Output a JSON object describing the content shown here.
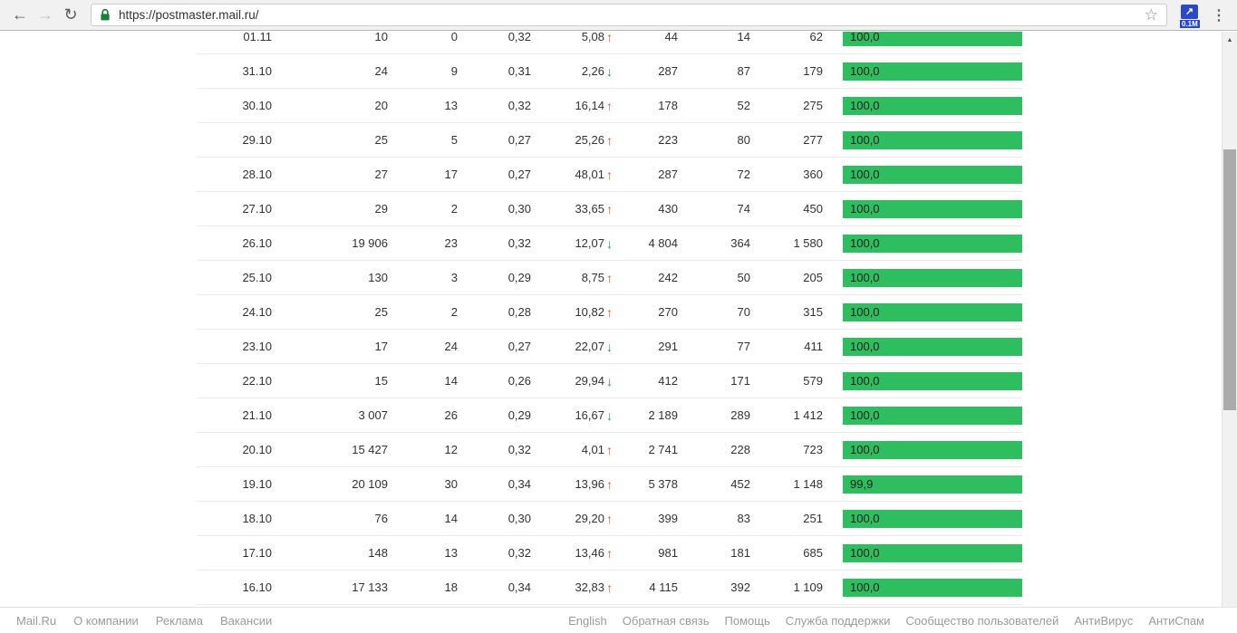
{
  "browser": {
    "url": "https://postmaster.mail.ru/",
    "extension_badge": "0.1M"
  },
  "icons": {
    "back": "←",
    "forward": "→",
    "reload": "↻",
    "star": "☆",
    "menu": "⋮",
    "ext_arrow": "↗",
    "up_arrow": "↑",
    "down_arrow": "↓",
    "scroll_up": "▲",
    "scroll_down": "▼"
  },
  "colors": {
    "bar_green": "#2ebd5f",
    "arrow_up": "#e8502a",
    "arrow_down": "#21a038",
    "lock_green": "#188038"
  },
  "table": {
    "rows": [
      {
        "date": "01.11",
        "v1": "10",
        "v2": "0",
        "v3": "0,32",
        "delta": "5,08",
        "dir": "up",
        "v4": "44",
        "v5": "14",
        "v6": "62",
        "bar": "100,0",
        "pct": 100
      },
      {
        "date": "31.10",
        "v1": "24",
        "v2": "9",
        "v3": "0,31",
        "delta": "2,26",
        "dir": "down",
        "v4": "287",
        "v5": "87",
        "v6": "179",
        "bar": "100,0",
        "pct": 100
      },
      {
        "date": "30.10",
        "v1": "20",
        "v2": "13",
        "v3": "0,32",
        "delta": "16,14",
        "dir": "up",
        "v4": "178",
        "v5": "52",
        "v6": "275",
        "bar": "100,0",
        "pct": 100
      },
      {
        "date": "29.10",
        "v1": "25",
        "v2": "5",
        "v3": "0,27",
        "delta": "25,26",
        "dir": "up",
        "v4": "223",
        "v5": "80",
        "v6": "277",
        "bar": "100,0",
        "pct": 100
      },
      {
        "date": "28.10",
        "v1": "27",
        "v2": "17",
        "v3": "0,27",
        "delta": "48,01",
        "dir": "up",
        "v4": "287",
        "v5": "72",
        "v6": "360",
        "bar": "100,0",
        "pct": 100
      },
      {
        "date": "27.10",
        "v1": "29",
        "v2": "2",
        "v3": "0,30",
        "delta": "33,65",
        "dir": "up",
        "v4": "430",
        "v5": "74",
        "v6": "450",
        "bar": "100,0",
        "pct": 100
      },
      {
        "date": "26.10",
        "v1": "19 906",
        "v2": "23",
        "v3": "0,32",
        "delta": "12,07",
        "dir": "down",
        "v4": "4 804",
        "v5": "364",
        "v6": "1 580",
        "bar": "100,0",
        "pct": 100
      },
      {
        "date": "25.10",
        "v1": "130",
        "v2": "3",
        "v3": "0,29",
        "delta": "8,75",
        "dir": "up",
        "v4": "242",
        "v5": "50",
        "v6": "205",
        "bar": "100,0",
        "pct": 100
      },
      {
        "date": "24.10",
        "v1": "25",
        "v2": "2",
        "v3": "0,28",
        "delta": "10,82",
        "dir": "up",
        "v4": "270",
        "v5": "70",
        "v6": "315",
        "bar": "100,0",
        "pct": 100
      },
      {
        "date": "23.10",
        "v1": "17",
        "v2": "24",
        "v3": "0,27",
        "delta": "22,07",
        "dir": "down",
        "v4": "291",
        "v5": "77",
        "v6": "411",
        "bar": "100,0",
        "pct": 100
      },
      {
        "date": "22.10",
        "v1": "15",
        "v2": "14",
        "v3": "0,26",
        "delta": "29,94",
        "dir": "down",
        "v4": "412",
        "v5": "171",
        "v6": "579",
        "bar": "100,0",
        "pct": 100
      },
      {
        "date": "21.10",
        "v1": "3 007",
        "v2": "26",
        "v3": "0,29",
        "delta": "16,67",
        "dir": "down",
        "v4": "2 189",
        "v5": "289",
        "v6": "1 412",
        "bar": "100,0",
        "pct": 100
      },
      {
        "date": "20.10",
        "v1": "15 427",
        "v2": "12",
        "v3": "0,32",
        "delta": "4,01",
        "dir": "up",
        "v4": "2 741",
        "v5": "228",
        "v6": "723",
        "bar": "100,0",
        "pct": 100
      },
      {
        "date": "19.10",
        "v1": "20 109",
        "v2": "30",
        "v3": "0,34",
        "delta": "13,96",
        "dir": "up",
        "v4": "5 378",
        "v5": "452",
        "v6": "1 148",
        "bar": "99,9",
        "pct": 99.9
      },
      {
        "date": "18.10",
        "v1": "76",
        "v2": "14",
        "v3": "0,30",
        "delta": "29,20",
        "dir": "up",
        "v4": "399",
        "v5": "83",
        "v6": "251",
        "bar": "100,0",
        "pct": 100
      },
      {
        "date": "17.10",
        "v1": "148",
        "v2": "13",
        "v3": "0,32",
        "delta": "13,46",
        "dir": "up",
        "v4": "981",
        "v5": "181",
        "v6": "685",
        "bar": "100,0",
        "pct": 100
      },
      {
        "date": "16.10",
        "v1": "17 133",
        "v2": "18",
        "v3": "0,34",
        "delta": "32,83",
        "dir": "up",
        "v4": "4 115",
        "v5": "392",
        "v6": "1 109",
        "bar": "100,0",
        "pct": 100
      }
    ]
  },
  "footer": {
    "left": [
      "Mail.Ru",
      "О компании",
      "Реклама",
      "Вакансии"
    ],
    "right": [
      "English",
      "Обратная связь",
      "Помощь",
      "Служба поддержки",
      "Сообщество пользователей",
      "АнтиВирус",
      "АнтиСпам"
    ]
  }
}
